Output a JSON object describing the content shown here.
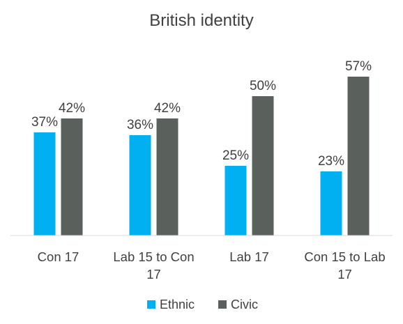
{
  "chart_data": {
    "type": "bar",
    "title": "British identity",
    "categories": [
      [
        "Con 17"
      ],
      [
        "Lab 15 to Con",
        "17"
      ],
      [
        "Lab 17"
      ],
      [
        "Con 15 to Lab",
        "17"
      ]
    ],
    "series": [
      {
        "name": "Ethnic",
        "color": "#00B0F0",
        "values": [
          37,
          36,
          25,
          23
        ],
        "labels": [
          "37%",
          "36%",
          "25%",
          "23%"
        ]
      },
      {
        "name": "Civic",
        "color": "#5A605C",
        "values": [
          42,
          42,
          50,
          57
        ],
        "labels": [
          "42%",
          "42%",
          "50%",
          "57%"
        ]
      }
    ],
    "ylim": [
      0,
      60
    ],
    "grid": false,
    "legend_position": "bottom"
  }
}
